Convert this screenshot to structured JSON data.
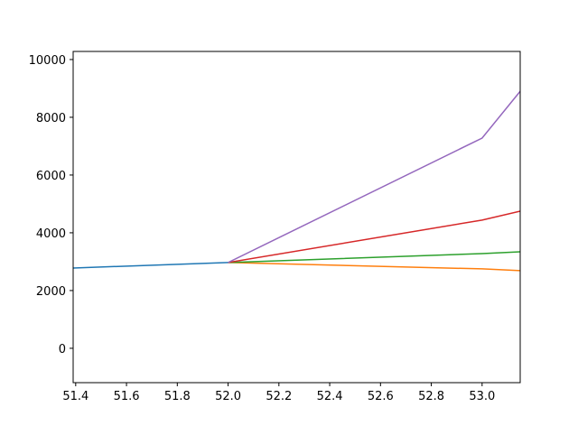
{
  "chart_data": {
    "type": "line",
    "x": [
      51.39,
      52.0,
      53.0,
      53.15
    ],
    "series": [
      {
        "color": "#1f77b4",
        "values": [
          2780,
          2970,
          null,
          null
        ]
      },
      {
        "color": "#ff7f0e",
        "values": [
          null,
          2970,
          2750,
          2690
        ]
      },
      {
        "color": "#2ca02c",
        "values": [
          null,
          2970,
          3280,
          3340
        ]
      },
      {
        "color": "#d62728",
        "values": [
          null,
          2970,
          4440,
          4750
        ]
      },
      {
        "color": "#9467bd",
        "values": [
          null,
          2970,
          7280,
          8900
        ]
      }
    ],
    "xlim": [
      51.39,
      53.15
    ],
    "xticks": [
      51.4,
      51.6,
      51.8,
      {
        "value": 52,
        "label": "52.0"
      },
      52.2,
      52.4,
      52.6,
      52.8,
      {
        "value": 53,
        "label": "53.0"
      }
    ],
    "ylim": [
      -1190,
      10280
    ],
    "yticks": [
      0,
      2000,
      4000,
      6000,
      8000,
      10000
    ]
  }
}
